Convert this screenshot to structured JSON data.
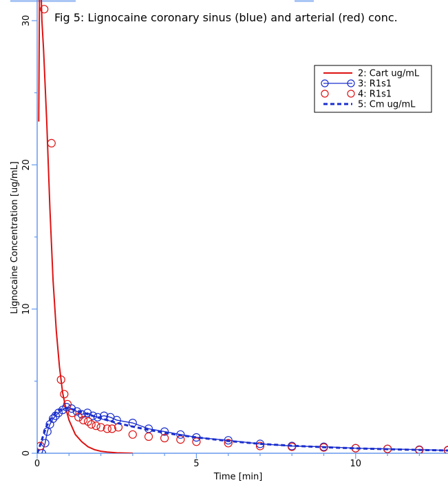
{
  "chart_data": {
    "type": "line",
    "title": "Fig 5: Lignocaine coronary sinus (blue) and arterial (red) conc.",
    "xlabel": "Time [min]",
    "ylabel": "Lignocaine Concentration [ug/mL]",
    "xlim": [
      0,
      12.9
    ],
    "ylim": [
      0,
      30.8
    ],
    "x_ticks": [
      0,
      5,
      10
    ],
    "x_tick_labels": [
      "0",
      "5",
      "10"
    ],
    "y_ticks": [
      0,
      10,
      20,
      30
    ],
    "y_tick_labels": [
      "0",
      "10",
      "20",
      "30"
    ],
    "grid": false,
    "legend_position": "top-right",
    "colors": {
      "red": "#dd1111",
      "blue": "#1a2ecc",
      "axis": "#6699ee"
    },
    "series": [
      {
        "name": "2: Cart ug/mL",
        "kind": "line",
        "color": "#dd1111",
        "x": [
          0.05,
          0.08,
          0.1,
          0.13,
          0.15,
          0.2,
          0.25,
          0.3,
          0.35,
          0.4,
          0.5,
          0.6,
          0.7,
          0.8,
          0.9,
          1.0,
          1.2,
          1.4,
          1.6,
          1.8,
          2.0,
          2.2,
          2.5,
          3.0
        ],
        "y": [
          23.0,
          35.0,
          32.0,
          31.5,
          30.0,
          28.0,
          25.5,
          23.0,
          20.0,
          17.0,
          12.0,
          8.5,
          6.0,
          4.2,
          3.1,
          2.3,
          1.3,
          0.8,
          0.45,
          0.25,
          0.14,
          0.08,
          0.03,
          0.0
        ]
      },
      {
        "name": "3: R1s1",
        "kind": "line-marker",
        "color": "#1a2ecc",
        "x": [
          0.15,
          0.25,
          0.32,
          0.4,
          0.5,
          0.58,
          0.67,
          0.8,
          0.92,
          1.08,
          1.25,
          1.4,
          1.58,
          1.75,
          1.9,
          2.1,
          2.3,
          2.5,
          3.0,
          3.5,
          4.0,
          4.5,
          5.0,
          6.0,
          7.0,
          8.0,
          9.0,
          10.0,
          11.0,
          12.0,
          12.9
        ],
        "y": [
          0.0,
          0.7,
          1.5,
          2.0,
          2.4,
          2.6,
          2.8,
          3.0,
          3.2,
          3.1,
          2.9,
          2.7,
          2.8,
          2.6,
          2.5,
          2.6,
          2.5,
          2.3,
          2.1,
          1.7,
          1.5,
          1.3,
          1.1,
          0.9,
          0.65,
          0.5,
          0.45,
          0.35,
          0.3,
          0.25,
          0.2
        ]
      },
      {
        "name": "4: R1s1",
        "kind": "marker",
        "color": "#dd1111",
        "x": [
          0.1,
          0.22,
          0.45,
          0.75,
          0.85,
          0.95,
          1.1,
          1.3,
          1.45,
          1.6,
          1.7,
          1.85,
          2.0,
          2.2,
          2.35,
          2.55,
          3.0,
          3.5,
          4.0,
          4.5,
          5.0,
          6.0,
          7.0,
          8.0,
          9.0,
          10.0,
          11.0,
          12.0,
          12.9
        ],
        "y": [
          0.5,
          30.8,
          21.5,
          5.1,
          4.1,
          3.4,
          2.8,
          2.5,
          2.3,
          2.2,
          2.0,
          1.9,
          1.8,
          1.7,
          1.7,
          1.8,
          1.3,
          1.15,
          1.05,
          0.95,
          0.8,
          0.7,
          0.5,
          0.45,
          0.4,
          0.35,
          0.3,
          0.22,
          0.22
        ]
      },
      {
        "name": "5: Cm ug/mL",
        "kind": "dashed-line",
        "color": "#1a2ecc",
        "x": [
          0.0,
          0.1,
          0.2,
          0.3,
          0.4,
          0.5,
          0.6,
          0.7,
          0.8,
          0.9,
          1.0,
          1.2,
          1.4,
          1.6,
          1.8,
          2.0,
          2.5,
          3.0,
          3.5,
          4.0,
          4.5,
          5.0,
          6.0,
          7.0,
          8.0,
          9.0,
          10.0,
          11.0,
          12.0,
          12.9
        ],
        "y": [
          0.0,
          0.6,
          1.3,
          1.9,
          2.3,
          2.6,
          2.85,
          3.0,
          3.1,
          3.12,
          3.1,
          3.0,
          2.85,
          2.7,
          2.55,
          2.42,
          2.1,
          1.85,
          1.62,
          1.42,
          1.25,
          1.1,
          0.85,
          0.65,
          0.52,
          0.42,
          0.34,
          0.28,
          0.23,
          0.19
        ]
      }
    ]
  }
}
